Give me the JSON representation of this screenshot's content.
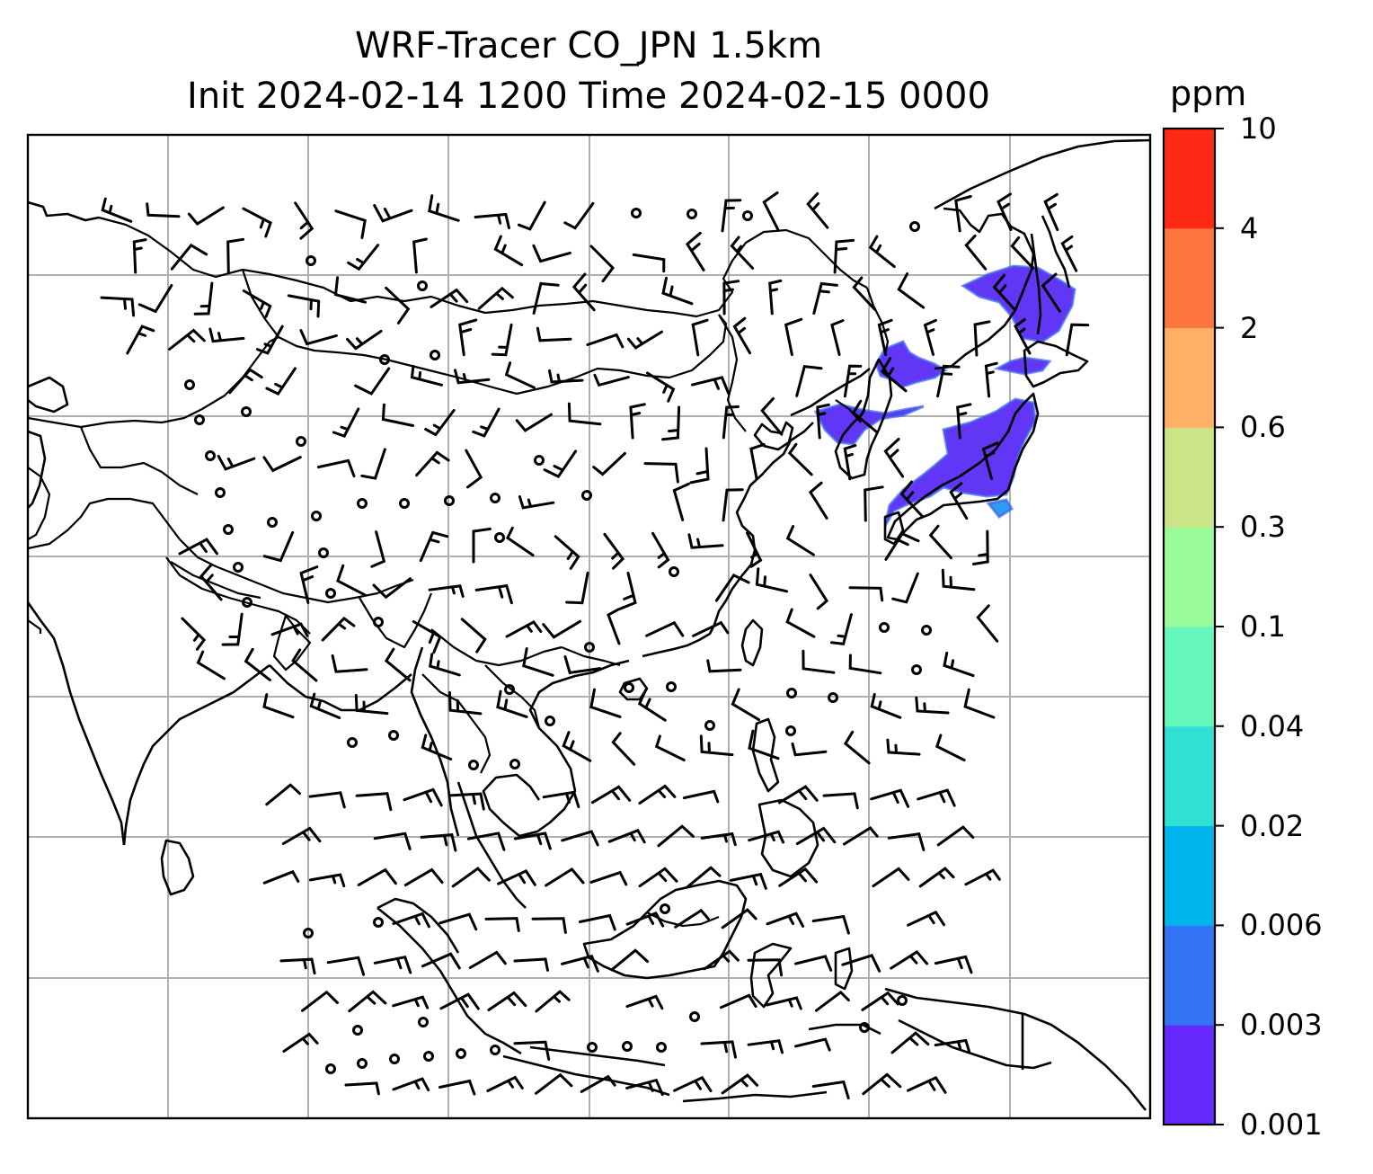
{
  "title": {
    "line1": "WRF-Tracer CO_JPN 1.5km",
    "line2": "Init 2024-02-14 1200 Time 2024-02-15 0000"
  },
  "colorbar": {
    "unit": "ppm",
    "levels": [
      "0.001",
      "0.003",
      "0.006",
      "0.02",
      "0.04",
      "0.1",
      "0.3",
      "0.6",
      "2",
      "4",
      "10"
    ],
    "colors": [
      "#6629fb",
      "#3274f3",
      "#00b3eb",
      "#2fe0d3",
      "#66f7bf",
      "#98fa98",
      "#cde388",
      "#ffb066",
      "#ff7540",
      "#ff2a15"
    ]
  },
  "plume_colors": {
    "main": "#6236f5",
    "core": "#3a63f0",
    "edge": "#2e9cf0"
  }
}
